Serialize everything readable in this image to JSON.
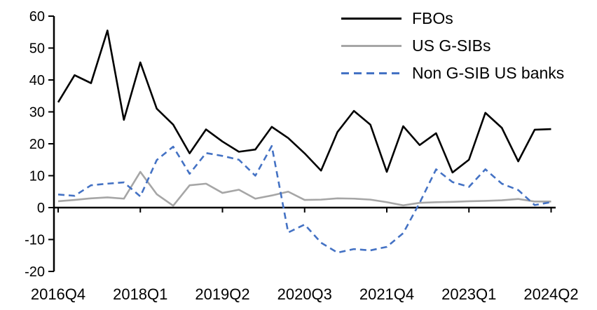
{
  "chart_data": {
    "type": "line",
    "title": "",
    "xlabel": "",
    "ylabel": "",
    "ylim": [
      -20,
      60
    ],
    "y_ticks": [
      60,
      50,
      40,
      30,
      20,
      10,
      0,
      -10,
      -20
    ],
    "x_tick_labels": [
      "2016Q4",
      "2018Q1",
      "2019Q2",
      "2020Q3",
      "2021Q4",
      "2023Q1",
      "2024Q2"
    ],
    "x_tick_indices": [
      0,
      5,
      10,
      15,
      20,
      25,
      30
    ],
    "grid": false,
    "legend_position": "top-right",
    "x_quarters": [
      "2016Q4",
      "2017Q1",
      "2017Q2",
      "2017Q3",
      "2017Q4",
      "2018Q1",
      "2018Q2",
      "2018Q3",
      "2018Q4",
      "2019Q1",
      "2019Q2",
      "2019Q3",
      "2019Q4",
      "2020Q1",
      "2020Q2",
      "2020Q3",
      "2020Q4",
      "2021Q1",
      "2021Q2",
      "2021Q3",
      "2021Q4",
      "2022Q1",
      "2022Q2",
      "2022Q3",
      "2022Q4",
      "2023Q1",
      "2023Q2",
      "2023Q3",
      "2023Q4",
      "2024Q1",
      "2024Q2"
    ],
    "series": [
      {
        "name": "FBOs",
        "color": "#000000",
        "style": "solid",
        "values": [
          33,
          41.5,
          39,
          55.5,
          27.5,
          45.5,
          31,
          26,
          17,
          24.5,
          20.7,
          17.5,
          18.2,
          25.3,
          21.8,
          17,
          11.6,
          23.7,
          30.3,
          26,
          11.2,
          25.5,
          19.6,
          23.3,
          11,
          15,
          29.7,
          25,
          14.5,
          24.4,
          24.6
        ]
      },
      {
        "name": "US G-SIBs",
        "color": "#A6A6A6",
        "style": "solid",
        "values": [
          2,
          2.4,
          2.9,
          3.2,
          2.8,
          11.2,
          4.2,
          0.6,
          7,
          7.5,
          4.6,
          5.6,
          2.8,
          3.8,
          5,
          2.4,
          2.5,
          2.9,
          2.8,
          2.5,
          1.7,
          0.7,
          1.5,
          1.7,
          1.8,
          2,
          2.1,
          2.3,
          2.7,
          1.9,
          1.9
        ]
      },
      {
        "name": "Non G-SIB US banks",
        "color": "#4472C4",
        "style": "dashed",
        "values": [
          4.1,
          3.7,
          7,
          7.5,
          7.9,
          3.5,
          14.9,
          19.1,
          10.6,
          17.1,
          16.2,
          15,
          10,
          19.3,
          -7.8,
          -5.3,
          -11,
          -14.1,
          -13,
          -13.4,
          -12.3,
          -8,
          1.5,
          12,
          8,
          6.5,
          12,
          7.5,
          5.5,
          0.8,
          1.7
        ]
      }
    ]
  }
}
